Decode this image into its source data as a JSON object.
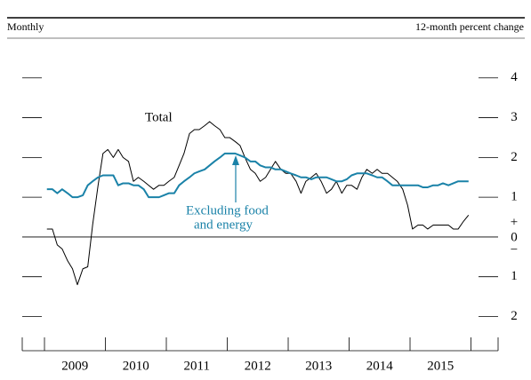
{
  "chart_data": {
    "type": "line",
    "header_left": "Monthly",
    "header_right": "12-month percent change",
    "xlim": [
      2008.635,
      2016.445
    ],
    "xticks": [
      {
        "value": 2009.5,
        "label": "2009"
      },
      {
        "value": 2010.5,
        "label": "2010"
      },
      {
        "value": 2011.5,
        "label": "2011"
      },
      {
        "value": 2012.5,
        "label": "2012"
      },
      {
        "value": 2013.5,
        "label": "2013"
      },
      {
        "value": 2014.5,
        "label": "2014"
      },
      {
        "value": 2015.5,
        "label": "2015"
      }
    ],
    "xtick_marks": [
      2009,
      2010,
      2011,
      2012,
      2013,
      2014,
      2015,
      2016
    ],
    "ylim": [
      -2.86,
      5.0
    ],
    "yticks": [
      {
        "value": -2,
        "label": "2"
      },
      {
        "value": -1,
        "label": "1"
      },
      0,
      1,
      2,
      3,
      4
    ],
    "zero_signs": [
      "+",
      "−"
    ],
    "x": [
      2009.04,
      2009.13,
      2009.21,
      2009.29,
      2009.38,
      2009.46,
      2009.54,
      2009.63,
      2009.71,
      2009.79,
      2009.88,
      2009.96,
      2010.04,
      2010.13,
      2010.21,
      2010.29,
      2010.38,
      2010.46,
      2010.54,
      2010.63,
      2010.71,
      2010.79,
      2010.88,
      2010.96,
      2011.04,
      2011.13,
      2011.21,
      2011.29,
      2011.38,
      2011.46,
      2011.54,
      2011.63,
      2011.71,
      2011.79,
      2011.88,
      2011.96,
      2012.04,
      2012.13,
      2012.21,
      2012.29,
      2012.38,
      2012.46,
      2012.54,
      2012.63,
      2012.71,
      2012.79,
      2012.88,
      2012.96,
      2013.04,
      2013.13,
      2013.21,
      2013.29,
      2013.38,
      2013.46,
      2013.54,
      2013.63,
      2013.71,
      2013.79,
      2013.88,
      2013.96,
      2014.04,
      2014.13,
      2014.21,
      2014.29,
      2014.38,
      2014.46,
      2014.54,
      2014.63,
      2014.71,
      2014.79,
      2014.88,
      2014.96,
      2015.04,
      2015.13,
      2015.21,
      2015.29,
      2015.38,
      2015.46,
      2015.54,
      2015.63,
      2015.71,
      2015.79,
      2015.88,
      2015.96
    ],
    "series": [
      {
        "label": "Total",
        "color": "#000000",
        "values": [
          0.2,
          0.2,
          -0.2,
          -0.3,
          -0.6,
          -0.8,
          -1.2,
          -0.8,
          -0.75,
          0.3,
          1.3,
          2.1,
          2.2,
          2.0,
          2.2,
          2.0,
          1.9,
          1.4,
          1.5,
          1.4,
          1.3,
          1.2,
          1.3,
          1.3,
          1.4,
          1.5,
          1.8,
          2.1,
          2.6,
          2.7,
          2.7,
          2.8,
          2.9,
          2.8,
          2.7,
          2.5,
          2.5,
          2.4,
          2.3,
          2.0,
          1.7,
          1.6,
          1.4,
          1.5,
          1.7,
          1.9,
          1.7,
          1.6,
          1.6,
          1.4,
          1.1,
          1.4,
          1.5,
          1.6,
          1.4,
          1.1,
          1.2,
          1.4,
          1.1,
          1.3,
          1.3,
          1.2,
          1.5,
          1.7,
          1.6,
          1.7,
          1.6,
          1.6,
          1.5,
          1.4,
          1.2,
          0.8,
          0.2,
          0.3,
          0.3,
          0.2,
          0.3,
          0.3,
          0.3,
          0.3,
          0.2,
          0.2,
          0.4,
          0.55
        ]
      },
      {
        "label": [
          "Excluding food",
          "and energy"
        ],
        "color": "#1a82a8",
        "values": [
          1.2,
          1.2,
          1.1,
          1.2,
          1.1,
          1.0,
          1.0,
          1.05,
          1.3,
          1.4,
          1.5,
          1.55,
          1.55,
          1.55,
          1.3,
          1.35,
          1.35,
          1.3,
          1.3,
          1.2,
          1.0,
          1.0,
          1.0,
          1.05,
          1.1,
          1.1,
          1.3,
          1.4,
          1.5,
          1.6,
          1.65,
          1.7,
          1.8,
          1.9,
          2.0,
          2.1,
          2.1,
          2.1,
          2.05,
          2.0,
          1.9,
          1.9,
          1.8,
          1.75,
          1.75,
          1.7,
          1.7,
          1.65,
          1.6,
          1.55,
          1.5,
          1.5,
          1.45,
          1.5,
          1.5,
          1.5,
          1.45,
          1.4,
          1.4,
          1.45,
          1.55,
          1.6,
          1.6,
          1.6,
          1.55,
          1.5,
          1.5,
          1.4,
          1.3,
          1.3,
          1.3,
          1.3,
          1.3,
          1.3,
          1.25,
          1.25,
          1.3,
          1.3,
          1.35,
          1.3,
          1.35,
          1.4,
          1.4,
          1.4
        ]
      }
    ]
  }
}
